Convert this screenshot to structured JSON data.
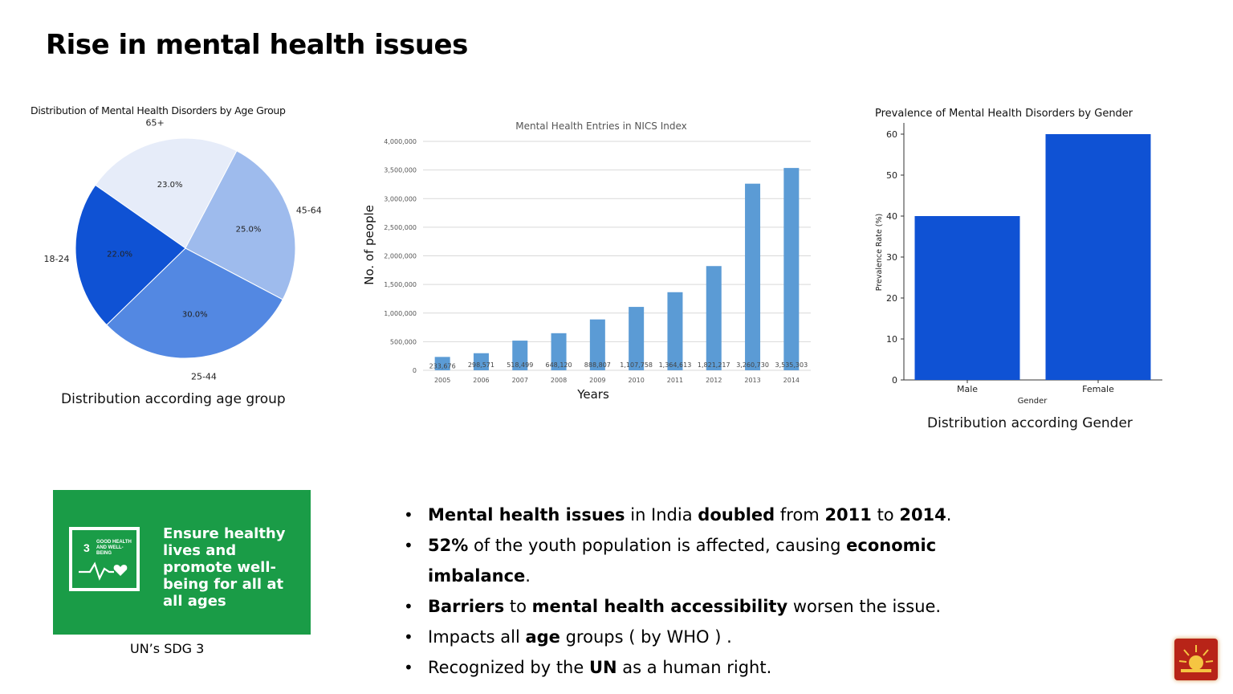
{
  "slide": {
    "title": "Rise in mental health issues"
  },
  "captions": {
    "age": "Distribution according age group",
    "gender": "Distribution according Gender",
    "sdg": "UN’s SDG 3"
  },
  "sdg": {
    "number": "3",
    "small_label": "GOOD HEALTH AND WELL-BEING",
    "text": "Ensure healthy lives and promote well-being for all at all ages",
    "color": "#1a9c47",
    "icon": "heartbeat-icon"
  },
  "bullets": [
    {
      "parts": [
        {
          "t": "Mental health issues",
          "b": true
        },
        {
          "t": " in India ",
          "b": false
        },
        {
          "t": "doubled",
          "b": true
        },
        {
          "t": " from ",
          "b": false
        },
        {
          "t": "2011",
          "b": true
        },
        {
          "t": " to ",
          "b": false
        },
        {
          "t": "2014",
          "b": true
        },
        {
          "t": ".",
          "b": false
        }
      ]
    },
    {
      "parts": [
        {
          "t": "52%",
          "b": true
        },
        {
          "t": " of the youth population is affected, causing ",
          "b": false
        },
        {
          "t": "economic imbalance",
          "b": true
        },
        {
          "t": ".",
          "b": false
        }
      ]
    },
    {
      "parts": [
        {
          "t": "Barriers",
          "b": true
        },
        {
          "t": " to ",
          "b": false
        },
        {
          "t": "mental health accessibility",
          "b": true
        },
        {
          "t": " worsen the issue.",
          "b": false
        }
      ]
    },
    {
      "parts": [
        {
          "t": "Impacts all ",
          "b": false
        },
        {
          "t": "age",
          "b": true
        },
        {
          "t": " groups ( by WHO ) .",
          "b": false
        }
      ]
    },
    {
      "parts": [
        {
          "t": "Recognized by the ",
          "b": false
        },
        {
          "t": "UN",
          "b": true
        },
        {
          "t": " as a human right.",
          "b": false
        }
      ]
    }
  ],
  "logo": {
    "icon": "sun-emblem-icon",
    "color": "#b82418"
  },
  "chart_data": [
    {
      "type": "pie",
      "title": "Distribution of Mental Health Disorders by Age Group",
      "categories": [
        "65+",
        "45-64",
        "25-44",
        "18-24"
      ],
      "values": [
        23.0,
        25.0,
        30.0,
        22.0
      ],
      "labels": [
        "23.0%",
        "25.0%",
        "30.0%",
        "22.0%"
      ],
      "colors": [
        "#e6ecf9",
        "#9ebbed",
        "#5388e2",
        "#0f52d4"
      ]
    },
    {
      "type": "bar",
      "title": "Mental Health Entries in NICS Index",
      "xlabel": "Years",
      "ylabel": "No. of people",
      "categories": [
        "2005",
        "2006",
        "2007",
        "2008",
        "2009",
        "2010",
        "2011",
        "2012",
        "2013",
        "2014"
      ],
      "values": [
        233676,
        298571,
        518499,
        648120,
        888807,
        1107758,
        1364613,
        1821217,
        3260730,
        3535303
      ],
      "labels": [
        "233,676",
        "298,571",
        "518,499",
        "648,120",
        "888,807",
        "1,107,758",
        "1,364,613",
        "1,821,217",
        "3,260,730",
        "3,535,303"
      ],
      "yticks": [
        "0",
        "500,000",
        "1,000,000",
        "1,500,000",
        "2,000,000",
        "2,500,000",
        "3,000,000",
        "3,500,000",
        "4,000,000"
      ],
      "ylim": [
        0,
        4000000
      ],
      "color": "#5b9bd5",
      "grid": true
    },
    {
      "type": "bar",
      "title": "Prevalence of Mental Health Disorders by Gender",
      "xlabel": "Gender",
      "ylabel": "Prevalence Rate (%)",
      "categories": [
        "Male",
        "Female"
      ],
      "values": [
        40,
        60
      ],
      "yticks": [
        "0",
        "10",
        "20",
        "30",
        "40",
        "50",
        "60"
      ],
      "ylim": [
        0,
        60
      ],
      "color": "#0f52d4",
      "grid": false
    }
  ]
}
